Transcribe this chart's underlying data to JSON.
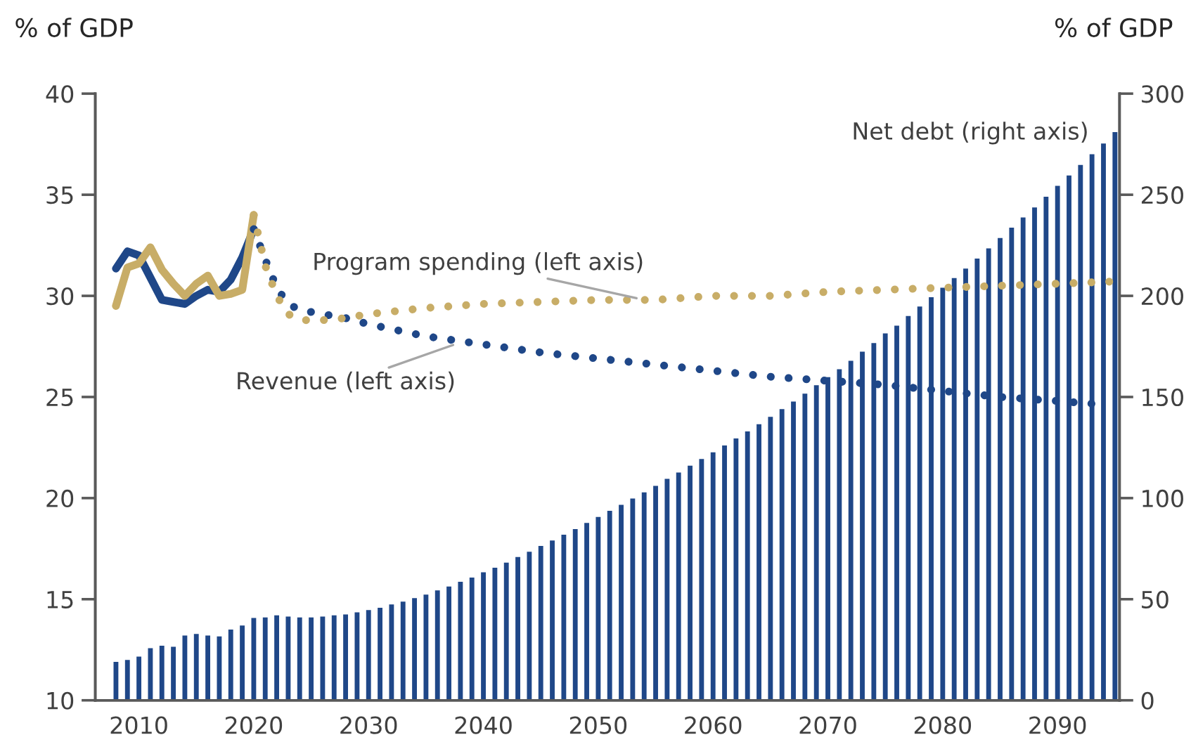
{
  "chart_data": {
    "type": "line",
    "ylabel": "% of GDP",
    "y2label": "% of GDP",
    "xlim": [
      2006.2,
      2095.4
    ],
    "xticks": [
      2010,
      2020,
      2030,
      2040,
      2050,
      2060,
      2070,
      2080,
      2090
    ],
    "ylim": [
      10,
      40
    ],
    "yticks": [
      10,
      15,
      20,
      25,
      30,
      35,
      40
    ],
    "y2lim": [
      0,
      300
    ],
    "y2ticks": [
      0,
      50,
      100,
      150,
      200,
      250,
      300
    ],
    "grid": false,
    "legend": false,
    "series": [
      {
        "type": "bar",
        "axis": "y2",
        "color": "#1f4788",
        "x": [
          2008,
          2009,
          2010,
          2011,
          2012,
          2013,
          2014,
          2015,
          2016,
          2017,
          2018,
          2019,
          2020,
          2021,
          2022,
          2023,
          2024,
          2025,
          2026,
          2027,
          2028,
          2029,
          2030,
          2031,
          2032,
          2033,
          2034,
          2035,
          2036,
          2037,
          2038,
          2039,
          2040,
          2041,
          2042,
          2043,
          2044,
          2045,
          2046,
          2047,
          2048,
          2049,
          2050,
          2051,
          2052,
          2053,
          2054,
          2055,
          2056,
          2057,
          2058,
          2059,
          2060,
          2061,
          2062,
          2063,
          2064,
          2065,
          2066,
          2067,
          2068,
          2069,
          2070,
          2071,
          2072,
          2073,
          2074,
          2075,
          2076,
          2077,
          2078,
          2079,
          2080,
          2081,
          2082,
          2083,
          2084,
          2085,
          2086,
          2087,
          2088,
          2089,
          2090,
          2091,
          2092,
          2093,
          2094,
          2095
        ],
        "values": [
          19,
          20,
          21.6,
          25.8,
          27,
          26.5,
          32,
          32.8,
          32,
          31.6,
          35,
          37,
          40.7,
          41,
          42,
          41.4,
          41,
          41,
          41.4,
          42,
          42.5,
          43.5,
          44.6,
          45.8,
          47.4,
          48.8,
          50.5,
          52.3,
          54.4,
          56.3,
          58.6,
          60.7,
          63.3,
          65.6,
          68.1,
          70.9,
          73.5,
          76.3,
          79,
          81.9,
          84.7,
          87.7,
          90.7,
          93.7,
          96.7,
          99.8,
          102.8,
          106,
          109.5,
          112.6,
          116,
          119.3,
          122.6,
          126,
          129.5,
          133,
          136.5,
          140.2,
          144,
          147.7,
          151.6,
          155.8,
          159.8,
          163.7,
          167.9,
          172.4,
          176.7,
          181.4,
          185.3,
          190,
          194.7,
          199.3,
          204,
          208.8,
          213.5,
          218.4,
          223.5,
          228.6,
          233.7,
          238.8,
          243.7,
          249,
          254.4,
          259.5,
          264.7,
          270,
          275.3,
          281
        ]
      },
      {
        "color": "#1f4788",
        "line_style": "solid",
        "x": [
          2008,
          2009,
          2010,
          2011,
          2012,
          2013,
          2014,
          2015,
          2016,
          2017,
          2018,
          2019,
          2020
        ],
        "values": [
          31.35,
          32.2,
          32.0,
          30.9,
          29.8,
          29.7,
          29.6,
          30.0,
          30.3,
          30.2,
          30.8,
          31.9,
          33.3
        ]
      },
      {
        "color": "#c8ad67",
        "line_style": "solid",
        "x": [
          2008,
          2009,
          2010,
          2011,
          2012,
          2013,
          2014,
          2015,
          2016,
          2017,
          2018,
          2019,
          2020
        ],
        "values": [
          29.5,
          31.4,
          31.6,
          32.4,
          31.3,
          30.6,
          30.0,
          30.6,
          31.0,
          30.0,
          30.1,
          30.3,
          34.0
        ]
      },
      {
        "color": "#1f4788",
        "line_style": "dotted",
        "x": [
          2020,
          2021,
          2022,
          2023,
          2024,
          2026,
          2028,
          2030,
          2035,
          2040,
          2045,
          2050,
          2055,
          2060,
          2065,
          2070,
          2075,
          2080,
          2085,
          2090,
          2094.5
        ],
        "values": [
          33.3,
          31.8,
          30.4,
          29.6,
          29.3,
          29.1,
          28.9,
          28.6,
          28.0,
          27.6,
          27.2,
          26.9,
          26.6,
          26.3,
          26.0,
          25.8,
          25.6,
          25.3,
          25.0,
          24.8,
          24.6
        ]
      },
      {
        "color": "#c8ad67",
        "line_style": "dotted",
        "x": [
          2020,
          2021,
          2022,
          2023,
          2024,
          2026,
          2028,
          2030,
          2035,
          2040,
          2045,
          2050,
          2055,
          2060,
          2065,
          2070,
          2075,
          2080,
          2085,
          2090,
          2094.5
        ],
        "values": [
          34.0,
          31.5,
          30.0,
          29.1,
          28.8,
          28.8,
          28.9,
          29.1,
          29.4,
          29.6,
          29.7,
          29.8,
          29.8,
          30.0,
          30.0,
          30.2,
          30.3,
          30.4,
          30.5,
          30.6,
          30.7
        ]
      }
    ],
    "annotations": [
      {
        "text": "Program spending (left axis)",
        "x": 2054,
        "y": 29.8
      },
      {
        "text": "Revenue (left axis)",
        "x": 2038,
        "y": 27.7
      },
      "Net debt (right axis)"
    ]
  }
}
